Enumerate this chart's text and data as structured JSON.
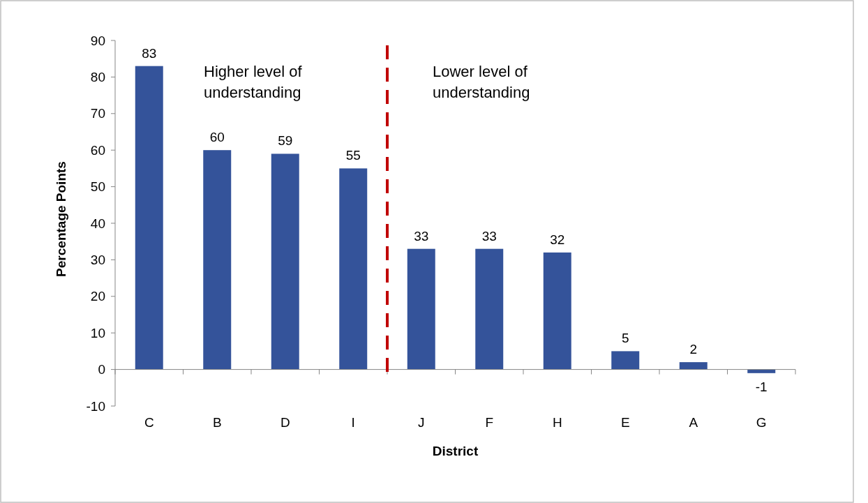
{
  "chart_data": {
    "type": "bar",
    "xlabel": "District",
    "ylabel": "Percentage Points",
    "categories": [
      "C",
      "B",
      "D",
      "I",
      "J",
      "F",
      "H",
      "E",
      "A",
      "G"
    ],
    "values": [
      83,
      60,
      59,
      55,
      33,
      33,
      32,
      5,
      2,
      -1
    ],
    "color": "#34539a",
    "ylim": [
      -10,
      90
    ],
    "yticks": [
      -10,
      0,
      10,
      20,
      30,
      40,
      50,
      60,
      70,
      80,
      90
    ],
    "data_labels": true,
    "annotations": [
      "Higher level of understanding",
      "Lower level of understanding"
    ]
  }
}
